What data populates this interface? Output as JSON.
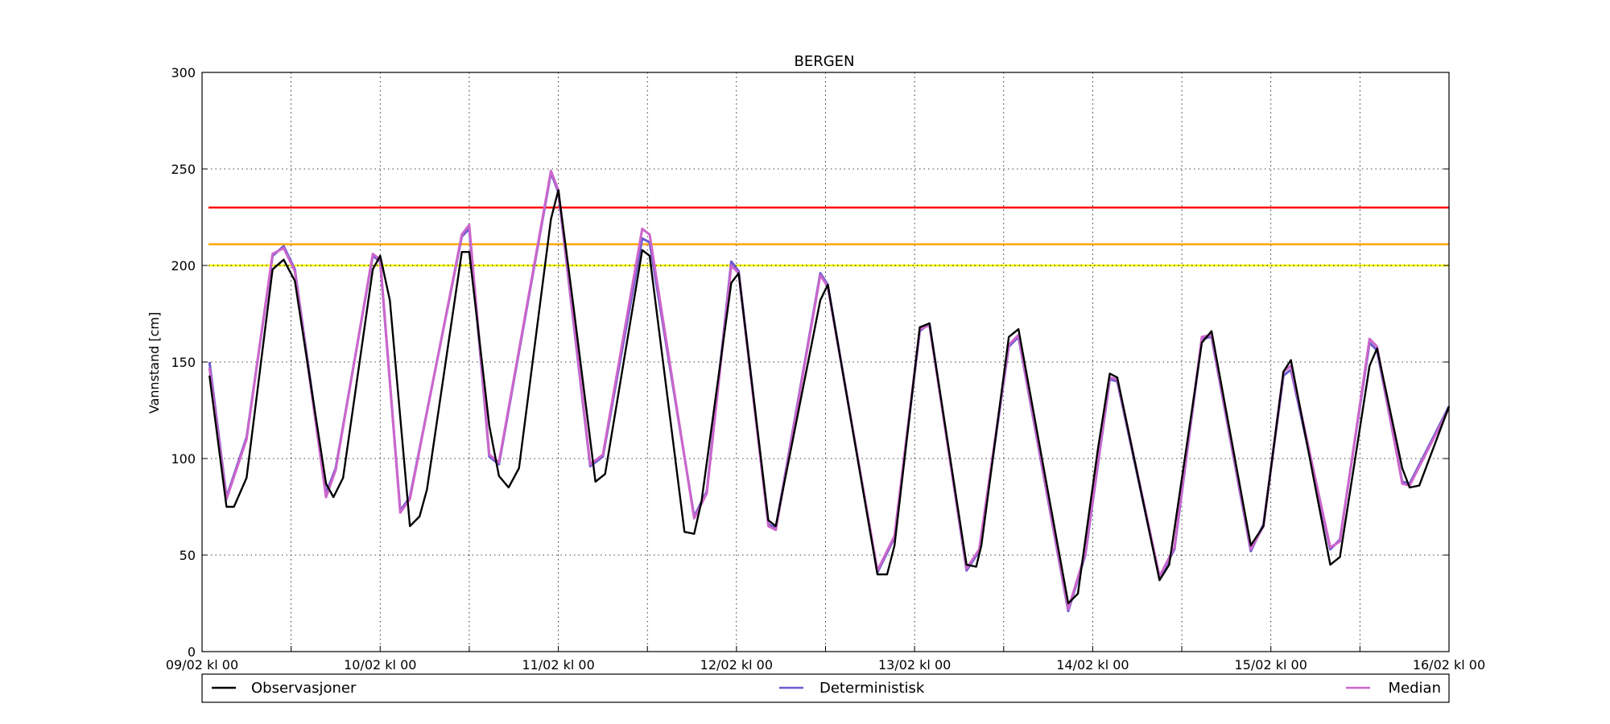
{
  "chart_data": {
    "type": "line",
    "title": "BERGEN",
    "xlabel": "",
    "ylabel": "Vannstand [cm]",
    "ylim": [
      0,
      300
    ],
    "y_ticks": [
      0,
      50,
      100,
      150,
      200,
      250,
      300
    ],
    "x_range_hours": [
      0,
      168
    ],
    "x_ticks": [
      {
        "hour": 0,
        "label": "09/02 kl 00"
      },
      {
        "hour": 24,
        "label": "10/02 kl 00"
      },
      {
        "hour": 48,
        "label": "11/02 kl 00"
      },
      {
        "hour": 72,
        "label": "12/02 kl 00"
      },
      {
        "hour": 96,
        "label": "13/02 kl 00"
      },
      {
        "hour": 120,
        "label": "14/02 kl 00"
      },
      {
        "hour": 144,
        "label": "15/02 kl 00"
      },
      {
        "hour": 168,
        "label": "16/02 kl 00"
      }
    ],
    "minor_x_gridlines_hours": [
      12,
      36,
      60,
      84,
      108,
      132,
      156
    ],
    "grid": true,
    "legend_position": "bottom",
    "thresholds": [
      {
        "value": 230,
        "color": "#ff0000"
      },
      {
        "value": 211,
        "color": "#ffa500"
      },
      {
        "value": 200,
        "color": "#ffff00",
        "dotted": true
      }
    ],
    "series": [
      {
        "name": "Deterministisk",
        "color": "#6a5acd",
        "points": [
          [
            1,
            150
          ],
          [
            3.3,
            80
          ],
          [
            6,
            111
          ],
          [
            9.5,
            205
          ],
          [
            11,
            210
          ],
          [
            12.5,
            198
          ],
          [
            16.7,
            82
          ],
          [
            18,
            95
          ],
          [
            23,
            205
          ],
          [
            24,
            202
          ],
          [
            26.7,
            73
          ],
          [
            28,
            80
          ],
          [
            35,
            215
          ],
          [
            36,
            219
          ],
          [
            38.7,
            101
          ],
          [
            40,
            97
          ],
          [
            47,
            248
          ],
          [
            48,
            238
          ],
          [
            52.3,
            96
          ],
          [
            54,
            101
          ],
          [
            59.3,
            214
          ],
          [
            60.3,
            212
          ],
          [
            66.3,
            70
          ],
          [
            68,
            83
          ],
          [
            71.3,
            202
          ],
          [
            72.3,
            197
          ],
          [
            76.3,
            66
          ],
          [
            77.3,
            64
          ],
          [
            83.3,
            196
          ],
          [
            84.3,
            190
          ],
          [
            91,
            41
          ],
          [
            93.3,
            59
          ],
          [
            96.7,
            166
          ],
          [
            98,
            170
          ],
          [
            103,
            42
          ],
          [
            104.7,
            52
          ],
          [
            108.7,
            158
          ],
          [
            110,
            163
          ],
          [
            116.7,
            21
          ],
          [
            119,
            50
          ],
          [
            122.3,
            141
          ],
          [
            123.3,
            140
          ],
          [
            129,
            38
          ],
          [
            131,
            53
          ],
          [
            134.7,
            162
          ],
          [
            136,
            163
          ],
          [
            141.3,
            52
          ],
          [
            143,
            66
          ],
          [
            145.7,
            143
          ],
          [
            146.7,
            146
          ],
          [
            152,
            53
          ],
          [
            153.3,
            58
          ],
          [
            157.3,
            160
          ],
          [
            158.3,
            156
          ],
          [
            161.7,
            88
          ],
          [
            162.7,
            87
          ],
          [
            168,
            127
          ]
        ]
      },
      {
        "name": "Median",
        "color": "#cc66cc",
        "points": [
          [
            1,
            147
          ],
          [
            3.3,
            79
          ],
          [
            6,
            110
          ],
          [
            9.5,
            206
          ],
          [
            11,
            209
          ],
          [
            12.5,
            197
          ],
          [
            16.7,
            80
          ],
          [
            18,
            94
          ],
          [
            23,
            206
          ],
          [
            24,
            203
          ],
          [
            26.7,
            72
          ],
          [
            28,
            79
          ],
          [
            35,
            216
          ],
          [
            36,
            221
          ],
          [
            38.7,
            102
          ],
          [
            40,
            98
          ],
          [
            47,
            249
          ],
          [
            48,
            239
          ],
          [
            52.3,
            97
          ],
          [
            54,
            102
          ],
          [
            59.3,
            219
          ],
          [
            60.3,
            216
          ],
          [
            66.3,
            69
          ],
          [
            68,
            82
          ],
          [
            71.3,
            200
          ],
          [
            72.3,
            196
          ],
          [
            76.3,
            65
          ],
          [
            77.3,
            63
          ],
          [
            83.3,
            195
          ],
          [
            84.3,
            189
          ],
          [
            91,
            42
          ],
          [
            93.3,
            60
          ],
          [
            96.7,
            167
          ],
          [
            98,
            169
          ],
          [
            103,
            43
          ],
          [
            104.7,
            53
          ],
          [
            108.7,
            159
          ],
          [
            110,
            164
          ],
          [
            116.7,
            22
          ],
          [
            119,
            51
          ],
          [
            122.3,
            142
          ],
          [
            123.3,
            141
          ],
          [
            129,
            39
          ],
          [
            131,
            54
          ],
          [
            134.7,
            163
          ],
          [
            136,
            164
          ],
          [
            141.3,
            53
          ],
          [
            143,
            65
          ],
          [
            145.7,
            145
          ],
          [
            146.7,
            148
          ],
          [
            152,
            54
          ],
          [
            153.3,
            57
          ],
          [
            157.3,
            162
          ],
          [
            158.3,
            158
          ],
          [
            161.7,
            87
          ],
          [
            162.7,
            86
          ],
          [
            168,
            126
          ]
        ]
      },
      {
        "name": "Observasjoner",
        "color": "#000000",
        "points": [
          [
            1,
            143
          ],
          [
            3.3,
            75
          ],
          [
            4.3,
            75
          ],
          [
            6,
            90
          ],
          [
            9.5,
            198
          ],
          [
            11,
            203
          ],
          [
            12.5,
            192
          ],
          [
            16.7,
            87
          ],
          [
            17.7,
            80
          ],
          [
            19,
            90
          ],
          [
            23,
            198
          ],
          [
            24,
            205
          ],
          [
            25.3,
            182
          ],
          [
            28,
            65
          ],
          [
            29.3,
            70
          ],
          [
            30.3,
            84
          ],
          [
            35,
            207
          ],
          [
            36,
            207
          ],
          [
            38.7,
            117
          ],
          [
            40,
            91
          ],
          [
            41.3,
            85
          ],
          [
            42.7,
            95
          ],
          [
            47,
            224
          ],
          [
            48,
            239
          ],
          [
            50,
            180
          ],
          [
            53,
            88
          ],
          [
            54.3,
            92
          ],
          [
            59.3,
            208
          ],
          [
            60.3,
            205
          ],
          [
            65,
            62
          ],
          [
            66.3,
            61
          ],
          [
            67.3,
            78
          ],
          [
            71.3,
            191
          ],
          [
            72.3,
            196
          ],
          [
            76.3,
            68
          ],
          [
            77.3,
            65
          ],
          [
            83.3,
            182
          ],
          [
            84.3,
            190
          ],
          [
            91,
            40
          ],
          [
            92.3,
            40
          ],
          [
            93.3,
            55
          ],
          [
            96.7,
            168
          ],
          [
            98,
            170
          ],
          [
            103,
            45
          ],
          [
            104.3,
            44
          ],
          [
            105,
            55
          ],
          [
            108.7,
            163
          ],
          [
            110,
            167
          ],
          [
            116.7,
            25
          ],
          [
            118,
            30
          ],
          [
            120.7,
            105
          ],
          [
            122.3,
            144
          ],
          [
            123.3,
            142
          ],
          [
            129,
            37
          ],
          [
            130.3,
            45
          ],
          [
            134.7,
            160
          ],
          [
            136,
            166
          ],
          [
            141.3,
            55
          ],
          [
            143,
            65
          ],
          [
            145.7,
            145
          ],
          [
            146.7,
            151
          ],
          [
            152,
            45
          ],
          [
            153.3,
            49
          ],
          [
            157.3,
            148
          ],
          [
            158.3,
            157
          ],
          [
            161.7,
            95
          ],
          [
            162.7,
            85
          ],
          [
            164,
            86
          ],
          [
            168,
            127
          ]
        ]
      }
    ],
    "legend": [
      {
        "label": "Observasjoner",
        "color": "#000000"
      },
      {
        "label": "Deterministisk",
        "color": "#6a5acd"
      },
      {
        "label": "Median",
        "color": "#cc66cc"
      }
    ]
  }
}
